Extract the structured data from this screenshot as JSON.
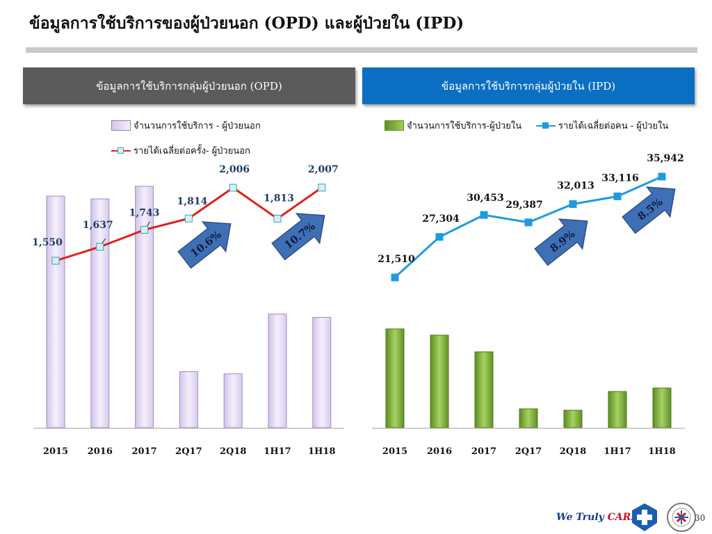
{
  "title": "ข้อมูลการใช้บริการของผู้ป่วยนอก (OPD) และผู้ป่วยใน (IPD)",
  "footer": {
    "brand_text_1": "We Truly ",
    "brand_text_2": "CARE",
    "page_number": "30"
  },
  "colors": {
    "opd_header": "#5b5b5b",
    "ipd_header": "#0a6fc2",
    "opd_bar": "#e3d9f2",
    "opd_line": "#e0201b",
    "ipd_bar": "#7fb03a",
    "ipd_line": "#1e9be0",
    "arrow": "#3f6fb5"
  },
  "chart_data": [
    {
      "type": "bar+line",
      "title": "ข้อมูลการใช้บริการกลุ่มผู้ป่วยนอก (OPD)",
      "categories": [
        "2015",
        "2016",
        "2017",
        "2Q17",
        "2Q18",
        "1H17",
        "1H18"
      ],
      "series": [
        {
          "name": "จำนวนการใช้บริการ - ผู้ป่วยนอก",
          "type": "bar",
          "values": [
            422,
            417,
            440,
            102,
            98,
            207,
            201
          ]
        },
        {
          "name": "รายได้เฉลี่ยต่อครั้ง- ผู้ป่วยนอก",
          "type": "line",
          "values": [
            1550,
            1637,
            1743,
            1814,
            2006,
            1813,
            2007
          ],
          "labels": [
            "1,550",
            "1,637",
            "1,743",
            "1,814",
            "2,006",
            "1,813",
            "2,007"
          ]
        }
      ],
      "annotations": [
        "10.6%",
        "10.7%"
      ],
      "legend": "top",
      "grid": false
    },
    {
      "type": "bar+line",
      "title": "ข้อมูลการใช้บริการกลุ่มผู้ป่วยใน (IPD)",
      "categories": [
        "2015",
        "2016",
        "2017",
        "2Q17",
        "2Q18",
        "1H17",
        "1H18"
      ],
      "series": [
        {
          "name": "จำนวนการใช้บริการ-ผู้ป่วยใน",
          "type": "bar",
          "values": [
            142,
            133,
            109,
            27,
            25,
            52,
            57
          ]
        },
        {
          "name": "รายได้เฉลี่ยต่อคน - ผู้ป่วยใน",
          "type": "line",
          "values": [
            21510,
            27304,
            30453,
            29387,
            32013,
            33116,
            35942
          ],
          "labels": [
            "21,510",
            "27,304",
            "30,453",
            "29,387",
            "32,013",
            "33,116",
            "35,942"
          ]
        }
      ],
      "annotations": [
        "8.9%",
        "8.5%"
      ],
      "legend": "top",
      "grid": false
    }
  ]
}
